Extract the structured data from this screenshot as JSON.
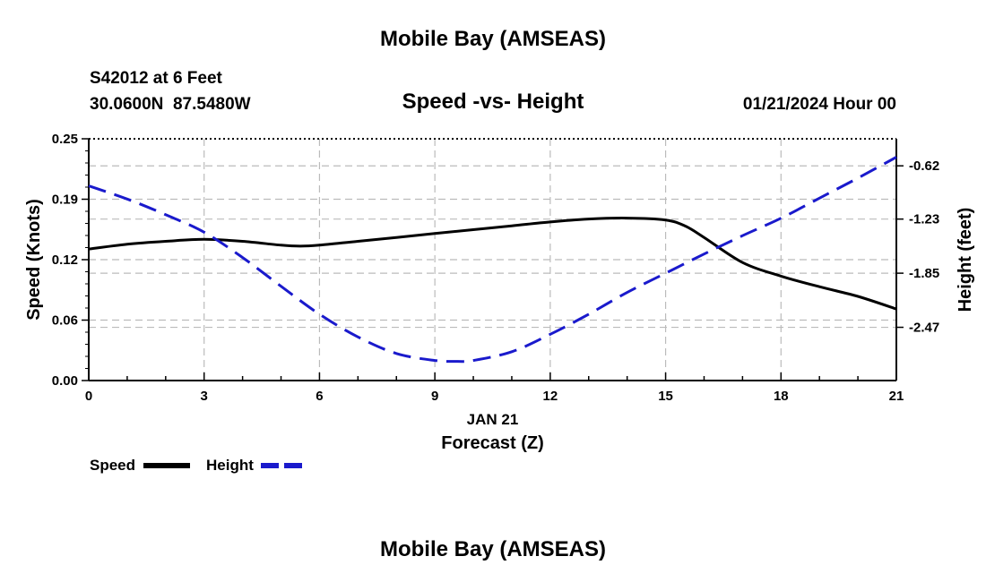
{
  "header": {
    "main_title": "Mobile Bay (AMSEAS)",
    "station_line": "S42012 at 6 Feet",
    "coords_line": "30.0600N  87.5480W",
    "chart_title": "Speed -vs- Height",
    "datetime": "01/21/2024 Hour 00"
  },
  "footer": {
    "repeat_title": "Mobile Bay (AMSEAS)"
  },
  "legend": {
    "speed_label": "Speed",
    "height_label": "Height"
  },
  "colors": {
    "speed": "#000000",
    "height": "#1a1acc",
    "grid": "#bbbbbb"
  },
  "chart_data": {
    "type": "line",
    "xlabel": "Forecast (Z)",
    "date_label": "JAN 21",
    "ylabel_left": "Speed (Knots)",
    "ylabel_right": "Height (feet)",
    "xlim": [
      0,
      21
    ],
    "x_ticks": [
      "0",
      "3",
      "6",
      "9",
      "12",
      "15",
      "18",
      "21"
    ],
    "ylim_left": [
      0,
      0.25
    ],
    "y_ticks_left": [
      "0.00",
      "0.06",
      "0.12",
      "0.19",
      "0.25"
    ],
    "y_ticks_left_values": [
      0,
      0.0625,
      0.125,
      0.1875,
      0.25
    ],
    "ylim_right": [
      -3.08,
      -0.31
    ],
    "y_ticks_right": [
      "-2.47",
      "-1.85",
      "-1.23",
      "-0.62"
    ],
    "y_ticks_right_values": [
      -2.47,
      -1.85,
      -1.23,
      -0.62
    ],
    "grid": true,
    "series": [
      {
        "name": "Speed",
        "axis": "left",
        "style": "solid",
        "x": [
          0,
          1,
          2,
          3,
          4,
          5,
          5.5,
          6,
          7,
          8,
          9,
          10,
          11,
          12,
          13,
          14,
          15,
          15.5,
          16,
          17,
          18,
          19,
          20,
          21
        ],
        "y": [
          0.136,
          0.141,
          0.144,
          0.146,
          0.144,
          0.14,
          0.139,
          0.14,
          0.144,
          0.148,
          0.152,
          0.156,
          0.16,
          0.164,
          0.167,
          0.168,
          0.166,
          0.16,
          0.148,
          0.122,
          0.108,
          0.097,
          0.087,
          0.074
        ]
      },
      {
        "name": "Height",
        "axis": "right",
        "style": "dashed",
        "x": [
          0,
          1,
          2,
          3,
          4,
          5,
          6,
          7,
          8,
          9,
          9.6,
          10,
          11,
          12,
          13,
          14,
          15,
          16,
          17,
          18,
          19,
          20,
          21
        ],
        "y": [
          -0.85,
          -1.0,
          -1.18,
          -1.38,
          -1.67,
          -2.0,
          -2.32,
          -2.58,
          -2.77,
          -2.85,
          -2.86,
          -2.85,
          -2.75,
          -2.55,
          -2.32,
          -2.07,
          -1.85,
          -1.63,
          -1.42,
          -1.22,
          -0.99,
          -0.76,
          -0.52
        ]
      }
    ]
  }
}
